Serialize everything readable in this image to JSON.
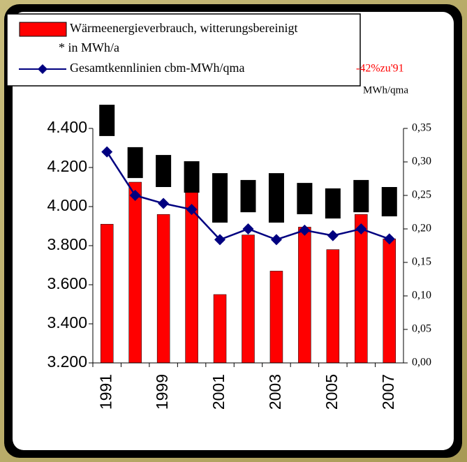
{
  "chart_data": {
    "type": "bar",
    "legend": [
      "Wärmeenergieverbrauch, witterungsbereinigt",
      "* in MWh/a"
    ],
    "annotation": "-42%zu'91",
    "y2label": "MWh/qma",
    "categories": [
      "1991",
      null,
      "1999",
      null,
      "2001",
      null,
      "2003",
      null,
      "2005",
      null,
      "2007"
    ],
    "values": [
      3910,
      4125,
      3960,
      4080,
      3550,
      3855,
      3670,
      3895,
      3780,
      3960,
      3835
    ],
    "color": "#ff0000",
    "bands": {
      "color": "#000000",
      "low": [
        4361,
        4146,
        4100,
        4071,
        3918,
        3971,
        3918,
        3961,
        3939,
        3971,
        3950
      ],
      "high": [
        4521,
        4304,
        4264,
        4232,
        4171,
        4136,
        4171,
        4121,
        4093,
        4136,
        4100
      ]
    },
    "line": {
      "type": "line",
      "name": "Gesamtkennlinien cbm-MWh/qma",
      "color": "#000080",
      "axis": "y2",
      "values": [
        0.315,
        0.25,
        0.238,
        0.229,
        0.184,
        0.2,
        0.184,
        0.198,
        0.19,
        0.2,
        0.185
      ]
    },
    "ylim": [
      3200,
      4400
    ],
    "yticks": [
      {
        "value": 3200,
        "label": "3.200"
      },
      {
        "value": 3400,
        "label": "3.400"
      },
      {
        "value": 3600,
        "label": "3.600"
      },
      {
        "value": 3800,
        "label": "3.800"
      },
      {
        "value": 4000,
        "label": "4.000"
      },
      {
        "value": 4200,
        "label": "4.200"
      },
      {
        "value": 4400,
        "label": "4.400"
      }
    ],
    "y2lim": [
      0,
      0.35
    ],
    "y2ticks": [
      {
        "value": 0,
        "label": "0,00"
      },
      {
        "value": 0.05,
        "label": "0,05"
      },
      {
        "value": 0.1,
        "label": "0,10"
      },
      {
        "value": 0.15,
        "label": "0,15"
      },
      {
        "value": 0.2,
        "label": "0,20"
      },
      {
        "value": 0.25,
        "label": "0,25"
      },
      {
        "value": 0.3,
        "label": "0,30"
      },
      {
        "value": 0.35,
        "label": "0,35"
      }
    ]
  }
}
